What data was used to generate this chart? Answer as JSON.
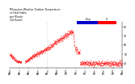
{
  "title": "Milwaukee Weather Outdoor Temperature\nvs Heat Index\nper Minute\n(24 Hours)",
  "title_fontsize": 2.2,
  "background_color": "#ffffff",
  "dot_color": "#ff0000",
  "dot_size": 0.15,
  "ylim": [
    35,
    85
  ],
  "yticks": [
    40,
    50,
    60,
    70,
    80
  ],
  "ylabel_fontsize": 2.2,
  "xlabel_fontsize": 1.8,
  "legend_blue": "#0000cc",
  "legend_red": "#ff0000",
  "legend_label_temp": "Temp",
  "legend_label_hi": "HI",
  "vline_color": "#bbbbbb",
  "n_minutes": 1440
}
